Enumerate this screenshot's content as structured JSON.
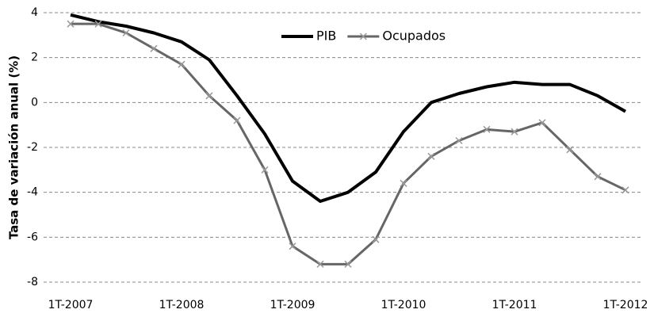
{
  "chart_data": {
    "type": "line",
    "y_label": "Tasa de variación anual (%)",
    "categories": [
      "1T-2007",
      null,
      null,
      null,
      "1T-2008",
      null,
      null,
      null,
      "1T-2009",
      null,
      null,
      null,
      "1T-2010",
      null,
      null,
      null,
      "1T-2011",
      null,
      null,
      null,
      "1T-2012"
    ],
    "series": [
      {
        "name": "PIB",
        "color": "#000000",
        "values": [
          3.9,
          3.6,
          3.4,
          3.1,
          2.7,
          1.9,
          0.3,
          -1.4,
          -3.5,
          -4.4,
          -4.0,
          -3.1,
          -1.3,
          0.0,
          0.4,
          0.7,
          0.9,
          0.8,
          0.8,
          0.3,
          -0.4
        ]
      },
      {
        "name": "Ocupados",
        "color": "#666666",
        "values": [
          3.5,
          3.5,
          3.1,
          2.4,
          1.7,
          0.3,
          -0.8,
          -3.0,
          -6.4,
          -7.2,
          -7.2,
          -6.1,
          -3.6,
          -2.4,
          -1.7,
          -1.2,
          -1.3,
          -0.9,
          -2.1,
          -3.3,
          -3.9
        ]
      }
    ],
    "ylim": [
      -8,
      4
    ],
    "yticks": [
      -8,
      -6,
      -4,
      -2,
      0,
      2,
      4
    ],
    "grid": true,
    "legend": "top"
  }
}
